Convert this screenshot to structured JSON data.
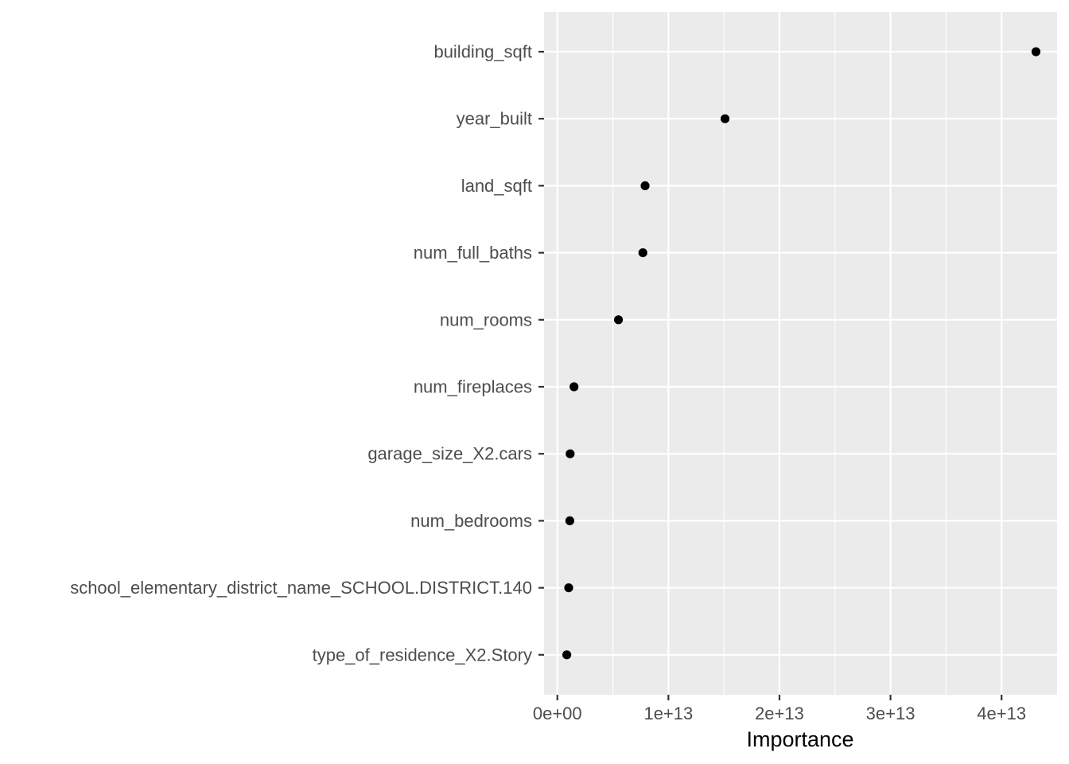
{
  "chart_data": {
    "type": "scatter",
    "title": "",
    "xlabel": "Importance",
    "ylabel": "",
    "xlim": [
      -1200000000000.0,
      45000000000000.0
    ],
    "x_ticks": [
      {
        "value": 0,
        "label": "0e+00"
      },
      {
        "value": 10000000000000.0,
        "label": "1e+13"
      },
      {
        "value": 20000000000000.0,
        "label": "2e+13"
      },
      {
        "value": 30000000000000.0,
        "label": "3e+13"
      },
      {
        "value": 40000000000000.0,
        "label": "4e+13"
      }
    ],
    "minor_x": [
      5000000000000.0,
      15000000000000.0,
      25000000000000.0,
      35000000000000.0,
      45000000000000.0
    ],
    "categories": [
      "building_sqft",
      "year_built",
      "land_sqft",
      "num_full_baths",
      "num_rooms",
      "num_fireplaces",
      "garage_size_X2.cars",
      "num_bedrooms",
      "school_elementary_district_name_SCHOOL.DISTRICT.140",
      "type_of_residence_X2.Story"
    ],
    "values": [
      43100000000000.0,
      15100000000000.0,
      7900000000000.0,
      7700000000000.0,
      5500000000000.0,
      1500000000000.0,
      1150000000000.0,
      1120000000000.0,
      1020000000000.0,
      850000000000.0
    ],
    "panel_background": "#ebebeb",
    "grid_color": "#ffffff",
    "point_color": "#000000"
  }
}
